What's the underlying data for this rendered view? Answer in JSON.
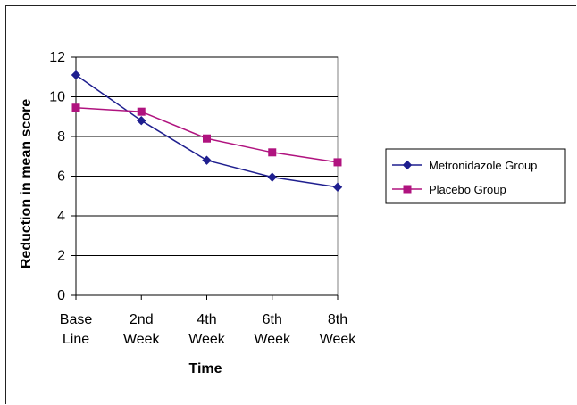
{
  "chart_data": {
    "type": "line",
    "categories": [
      [
        "Base",
        "Line"
      ],
      [
        "2nd",
        "Week"
      ],
      [
        "4th",
        "Week"
      ],
      [
        "6th",
        "Week"
      ],
      [
        "8th",
        "Week"
      ]
    ],
    "series": [
      {
        "name": "Metronidazole Group",
        "values": [
          11.1,
          8.8,
          6.8,
          5.95,
          5.45
        ],
        "color": "#1f1f8f",
        "marker": "diamond"
      },
      {
        "name": "Placebo Group",
        "values": [
          9.45,
          9.25,
          7.9,
          7.2,
          6.7
        ],
        "color": "#b0137f",
        "marker": "square"
      }
    ],
    "xlabel": "Time",
    "ylabel": "Reduction in mean score",
    "ylim": [
      0,
      12
    ],
    "yticks": [
      0,
      2,
      4,
      6,
      8,
      10,
      12
    ],
    "grid": true,
    "legend": "right"
  }
}
